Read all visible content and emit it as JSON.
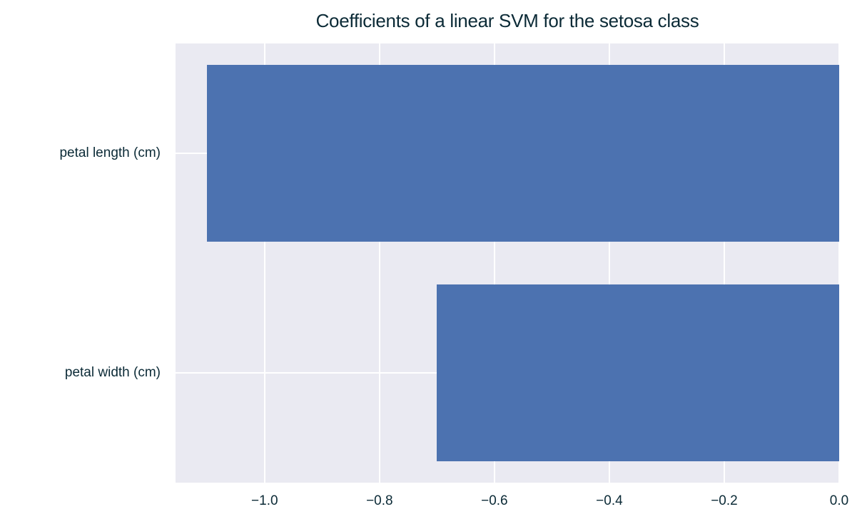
{
  "chart_data": {
    "type": "bar",
    "orientation": "horizontal",
    "title": "Coefficients of a linear SVM for the setosa class",
    "xlabel": "",
    "ylabel": "",
    "categories": [
      "petal length (cm)",
      "petal width (cm)"
    ],
    "values": [
      -1.1,
      -0.7
    ],
    "xlim": [
      -1.155,
      0.0
    ],
    "xticks": [
      -1.0,
      -0.8,
      -0.6,
      -0.4,
      -0.2,
      0.0
    ],
    "xtick_labels": [
      "−1.0",
      "−0.8",
      "−0.6",
      "−0.4",
      "−0.2",
      "0.0"
    ],
    "grid": true,
    "legend": null,
    "colors": {
      "bar": "#4c72b0",
      "plot_background": "#eaeaf2",
      "grid": "#ffffff",
      "text": "#0b2a36"
    }
  }
}
